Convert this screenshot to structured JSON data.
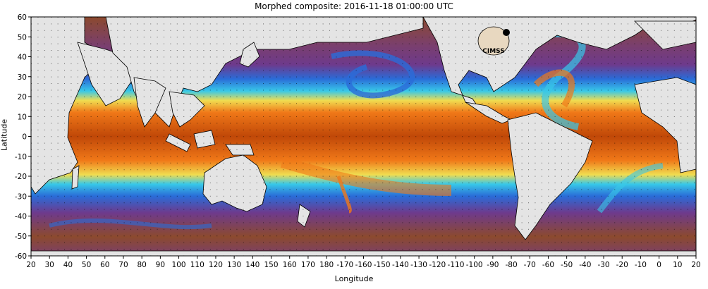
{
  "title": "Morphed composite: 2016-11-18 01:00:00 UTC",
  "axes": {
    "ylabel": "Latitude",
    "xlabel": "Longitude",
    "y_ticks": [
      "60",
      "50",
      "40",
      "30",
      "20",
      "10",
      "0",
      "-10",
      "-20",
      "-30",
      "-40",
      "-50",
      "-60"
    ],
    "x_ticks": [
      "20",
      "30",
      "40",
      "50",
      "60",
      "70",
      "80",
      "90",
      "100",
      "110",
      "120",
      "130",
      "140",
      "150",
      "160",
      "170",
      "180",
      "-170",
      "-160",
      "-150",
      "-140",
      "-130",
      "-120",
      "-110",
      "-100",
      "-90",
      "-80",
      "-70",
      "-60",
      "-50",
      "-40",
      "-30",
      "-20",
      "-10",
      "0",
      "10",
      "20"
    ]
  },
  "logo": {
    "text": "CIMSS"
  },
  "colors": {
    "land": "#e4e4e4",
    "dry_brown": "#8c4a2e",
    "purple": "#6e3a8c",
    "blue": "#2a6cd8",
    "cyan": "#38c8e8",
    "green": "#6edc8c",
    "yellow": "#f0dc50",
    "orange": "#f07818",
    "dark_orange": "#c04808"
  }
}
